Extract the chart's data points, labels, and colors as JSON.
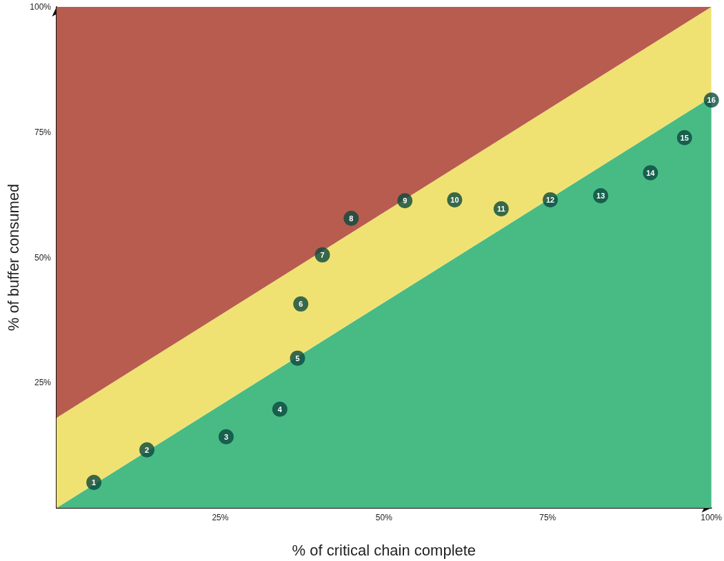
{
  "chart_data": {
    "type": "area",
    "stacked": true,
    "xlabel": "% of critical chain complete",
    "ylabel": "% of buffer consumed",
    "x": [
      0,
      100
    ],
    "xlim": [
      0,
      100
    ],
    "ylim": [
      0,
      100
    ],
    "xticks": [
      {
        "value": 25,
        "label": "25%"
      },
      {
        "value": 50,
        "label": "50%"
      },
      {
        "value": 75,
        "label": "75%"
      },
      {
        "value": 100,
        "label": "100%"
      }
    ],
    "yticks": [
      {
        "value": 25,
        "label": "25%"
      },
      {
        "value": 50,
        "label": "50%"
      },
      {
        "value": 75,
        "label": "75%"
      },
      {
        "value": 100,
        "label": "100%"
      }
    ],
    "grid": false,
    "series": [
      {
        "color": "#48bb85",
        "values": [
          0,
          82
        ]
      },
      {
        "color": "#f0e272",
        "values": [
          18,
          18
        ]
      },
      {
        "color": "#b85c50",
        "values": [
          82,
          0
        ]
      },
      {
        "type": "scatter",
        "color": "#0b4a3f",
        "marker": "circle",
        "x": [
          5.7,
          13.8,
          25.9,
          34.1,
          36.8,
          37.3,
          40.6,
          45.0,
          53.2,
          60.8,
          67.9,
          75.4,
          83.1,
          90.7,
          95.9,
          100
        ],
        "values": [
          5.1,
          11.6,
          14.2,
          19.7,
          29.9,
          40.7,
          50.5,
          57.8,
          61.3,
          61.5,
          59.7,
          61.5,
          62.3,
          66.9,
          73.9,
          81.4
        ]
      }
    ],
    "annotations": [
      {
        "text": "1",
        "x": 5.7,
        "y": 5.1
      },
      {
        "text": "2",
        "x": 13.8,
        "y": 11.6
      },
      {
        "text": "3",
        "x": 25.9,
        "y": 14.2
      },
      {
        "text": "4",
        "x": 34.1,
        "y": 19.7
      },
      {
        "text": "5",
        "x": 36.8,
        "y": 29.9
      },
      {
        "text": "6",
        "x": 37.3,
        "y": 40.7
      },
      {
        "text": "7",
        "x": 40.6,
        "y": 50.5
      },
      {
        "text": "8",
        "x": 45.0,
        "y": 57.8
      },
      {
        "text": "9",
        "x": 53.2,
        "y": 61.3
      },
      {
        "text": "10",
        "x": 60.8,
        "y": 61.5
      },
      {
        "text": "11",
        "x": 67.9,
        "y": 59.7
      },
      {
        "text": "12",
        "x": 75.4,
        "y": 61.5
      },
      {
        "text": "13",
        "x": 83.1,
        "y": 62.3
      },
      {
        "text": "14",
        "x": 90.7,
        "y": 66.9
      },
      {
        "text": "15",
        "x": 95.9,
        "y": 73.9
      },
      {
        "text": "16",
        "x": 100,
        "y": 81.4
      }
    ]
  }
}
